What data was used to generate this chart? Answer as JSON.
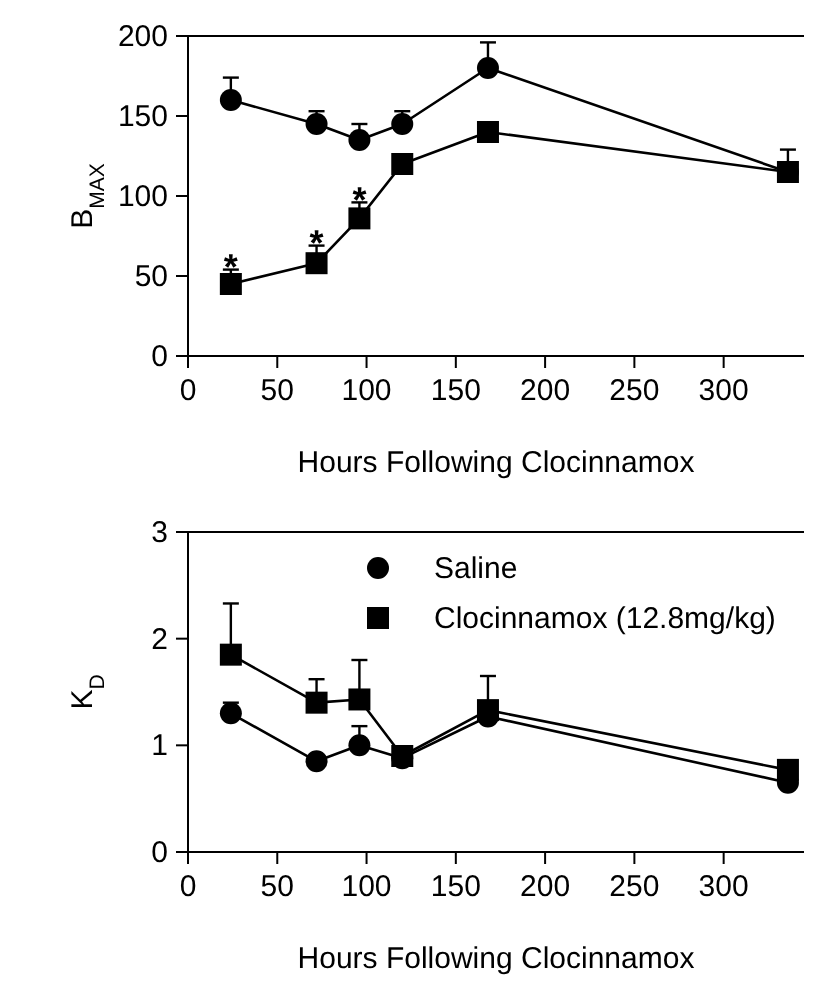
{
  "chart_data": [
    {
      "type": "line",
      "xlabel": "Hours Following Clocinnamox",
      "ylabel": "B$_{MAX}$",
      "xlim": [
        0,
        345
      ],
      "ylim": [
        0,
        200
      ],
      "xticks": [
        0,
        50,
        100,
        150,
        200,
        250,
        300
      ],
      "yticks": [
        0,
        50,
        100,
        150,
        200
      ],
      "legend": false,
      "grid": false,
      "x": [
        24,
        72,
        96,
        120,
        168,
        336
      ],
      "series": [
        {
          "color": "#000000",
          "marker": "circle",
          "values": [
            160,
            145,
            135,
            145,
            180,
            115
          ],
          "errors": [
            [
              160,
              174
            ],
            [
              145,
              153
            ],
            [
              135,
              145
            ],
            [
              145,
              153
            ],
            [
              180,
              196
            ],
            [
              115,
              129
            ]
          ]
        },
        {
          "color": "#000000",
          "marker": "square",
          "values": [
            45,
            58,
            86,
            120,
            140,
            115
          ],
          "errors": [
            [
              45,
              54
            ],
            [
              58,
              69
            ],
            [
              86,
              96
            ],
            [
              120,
              120
            ],
            [
              140,
              140
            ],
            [
              115,
              115
            ]
          ]
        }
      ],
      "annotations": [
        {
          "text": "*",
          "x": 24,
          "y": 58
        },
        {
          "text": "*",
          "x": 72,
          "y": 73
        },
        {
          "text": "*",
          "x": 96,
          "y": 100
        }
      ]
    },
    {
      "type": "line",
      "xlabel": "Hours Following Clocinnamox",
      "ylabel": "K$_{D}$",
      "xlim": [
        0,
        345
      ],
      "ylim": [
        0,
        3
      ],
      "xticks": [
        0,
        50,
        100,
        150,
        200,
        250,
        300
      ],
      "yticks": [
        0,
        1,
        2,
        3
      ],
      "legend": "top",
      "grid": false,
      "x": [
        24,
        72,
        96,
        120,
        168,
        336
      ],
      "series": [
        {
          "name": "Saline",
          "color": "#000000",
          "marker": "circle",
          "values": [
            1.3,
            0.85,
            1.0,
            0.88,
            1.27,
            0.65
          ],
          "errors": [
            [
              1.3,
              1.4
            ],
            [
              0.85,
              0.85
            ],
            [
              1.0,
              1.18
            ],
            [
              0.88,
              0.88
            ],
            [
              1.27,
              1.27
            ],
            [
              0.65,
              0.65
            ]
          ]
        },
        {
          "name": "Clocinnamox (12.8mg/kg)",
          "color": "#000000",
          "marker": "square",
          "values": [
            1.85,
            1.4,
            1.43,
            0.9,
            1.33,
            0.77
          ],
          "errors": [
            [
              1.85,
              2.33
            ],
            [
              1.4,
              1.62
            ],
            [
              1.43,
              1.8
            ],
            [
              0.9,
              0.9
            ],
            [
              1.33,
              1.65
            ],
            [
              0.77,
              0.77
            ]
          ]
        }
      ]
    }
  ]
}
